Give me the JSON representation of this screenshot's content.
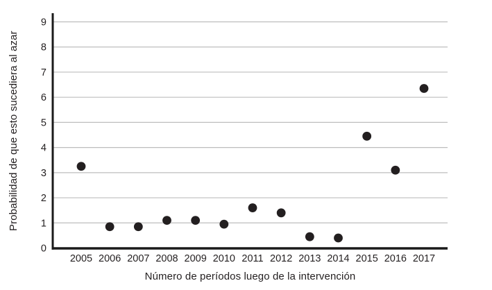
{
  "colors": {
    "background": "#ffffff",
    "axis": "#1a1a1a",
    "gridline": "#bdbdbd",
    "text": "#231f20",
    "dot": "#231f20"
  },
  "chart_data": {
    "type": "scatter",
    "title": "",
    "categories": [
      "2005",
      "2006",
      "2007",
      "2008",
      "2009",
      "2010",
      "2011",
      "2012",
      "2013",
      "2014",
      "2015",
      "2016",
      "2017"
    ],
    "values": [
      3.25,
      0.85,
      0.85,
      1.1,
      1.1,
      0.95,
      1.6,
      1.4,
      0.45,
      0.4,
      4.45,
      3.1,
      6.35
    ],
    "xlabel": "Número de períodos luego de la intervención",
    "ylabel": "Probabilidad de que esto sucediera al azar",
    "ylim": [
      0,
      9
    ],
    "yticks": [
      0,
      1,
      2,
      3,
      4,
      5,
      6,
      7,
      8,
      9
    ],
    "grid": true,
    "grid_axis": "y",
    "legend": false,
    "marker": {
      "shape": "circle",
      "color": "#231f20",
      "radius_px": 6.4
    }
  }
}
